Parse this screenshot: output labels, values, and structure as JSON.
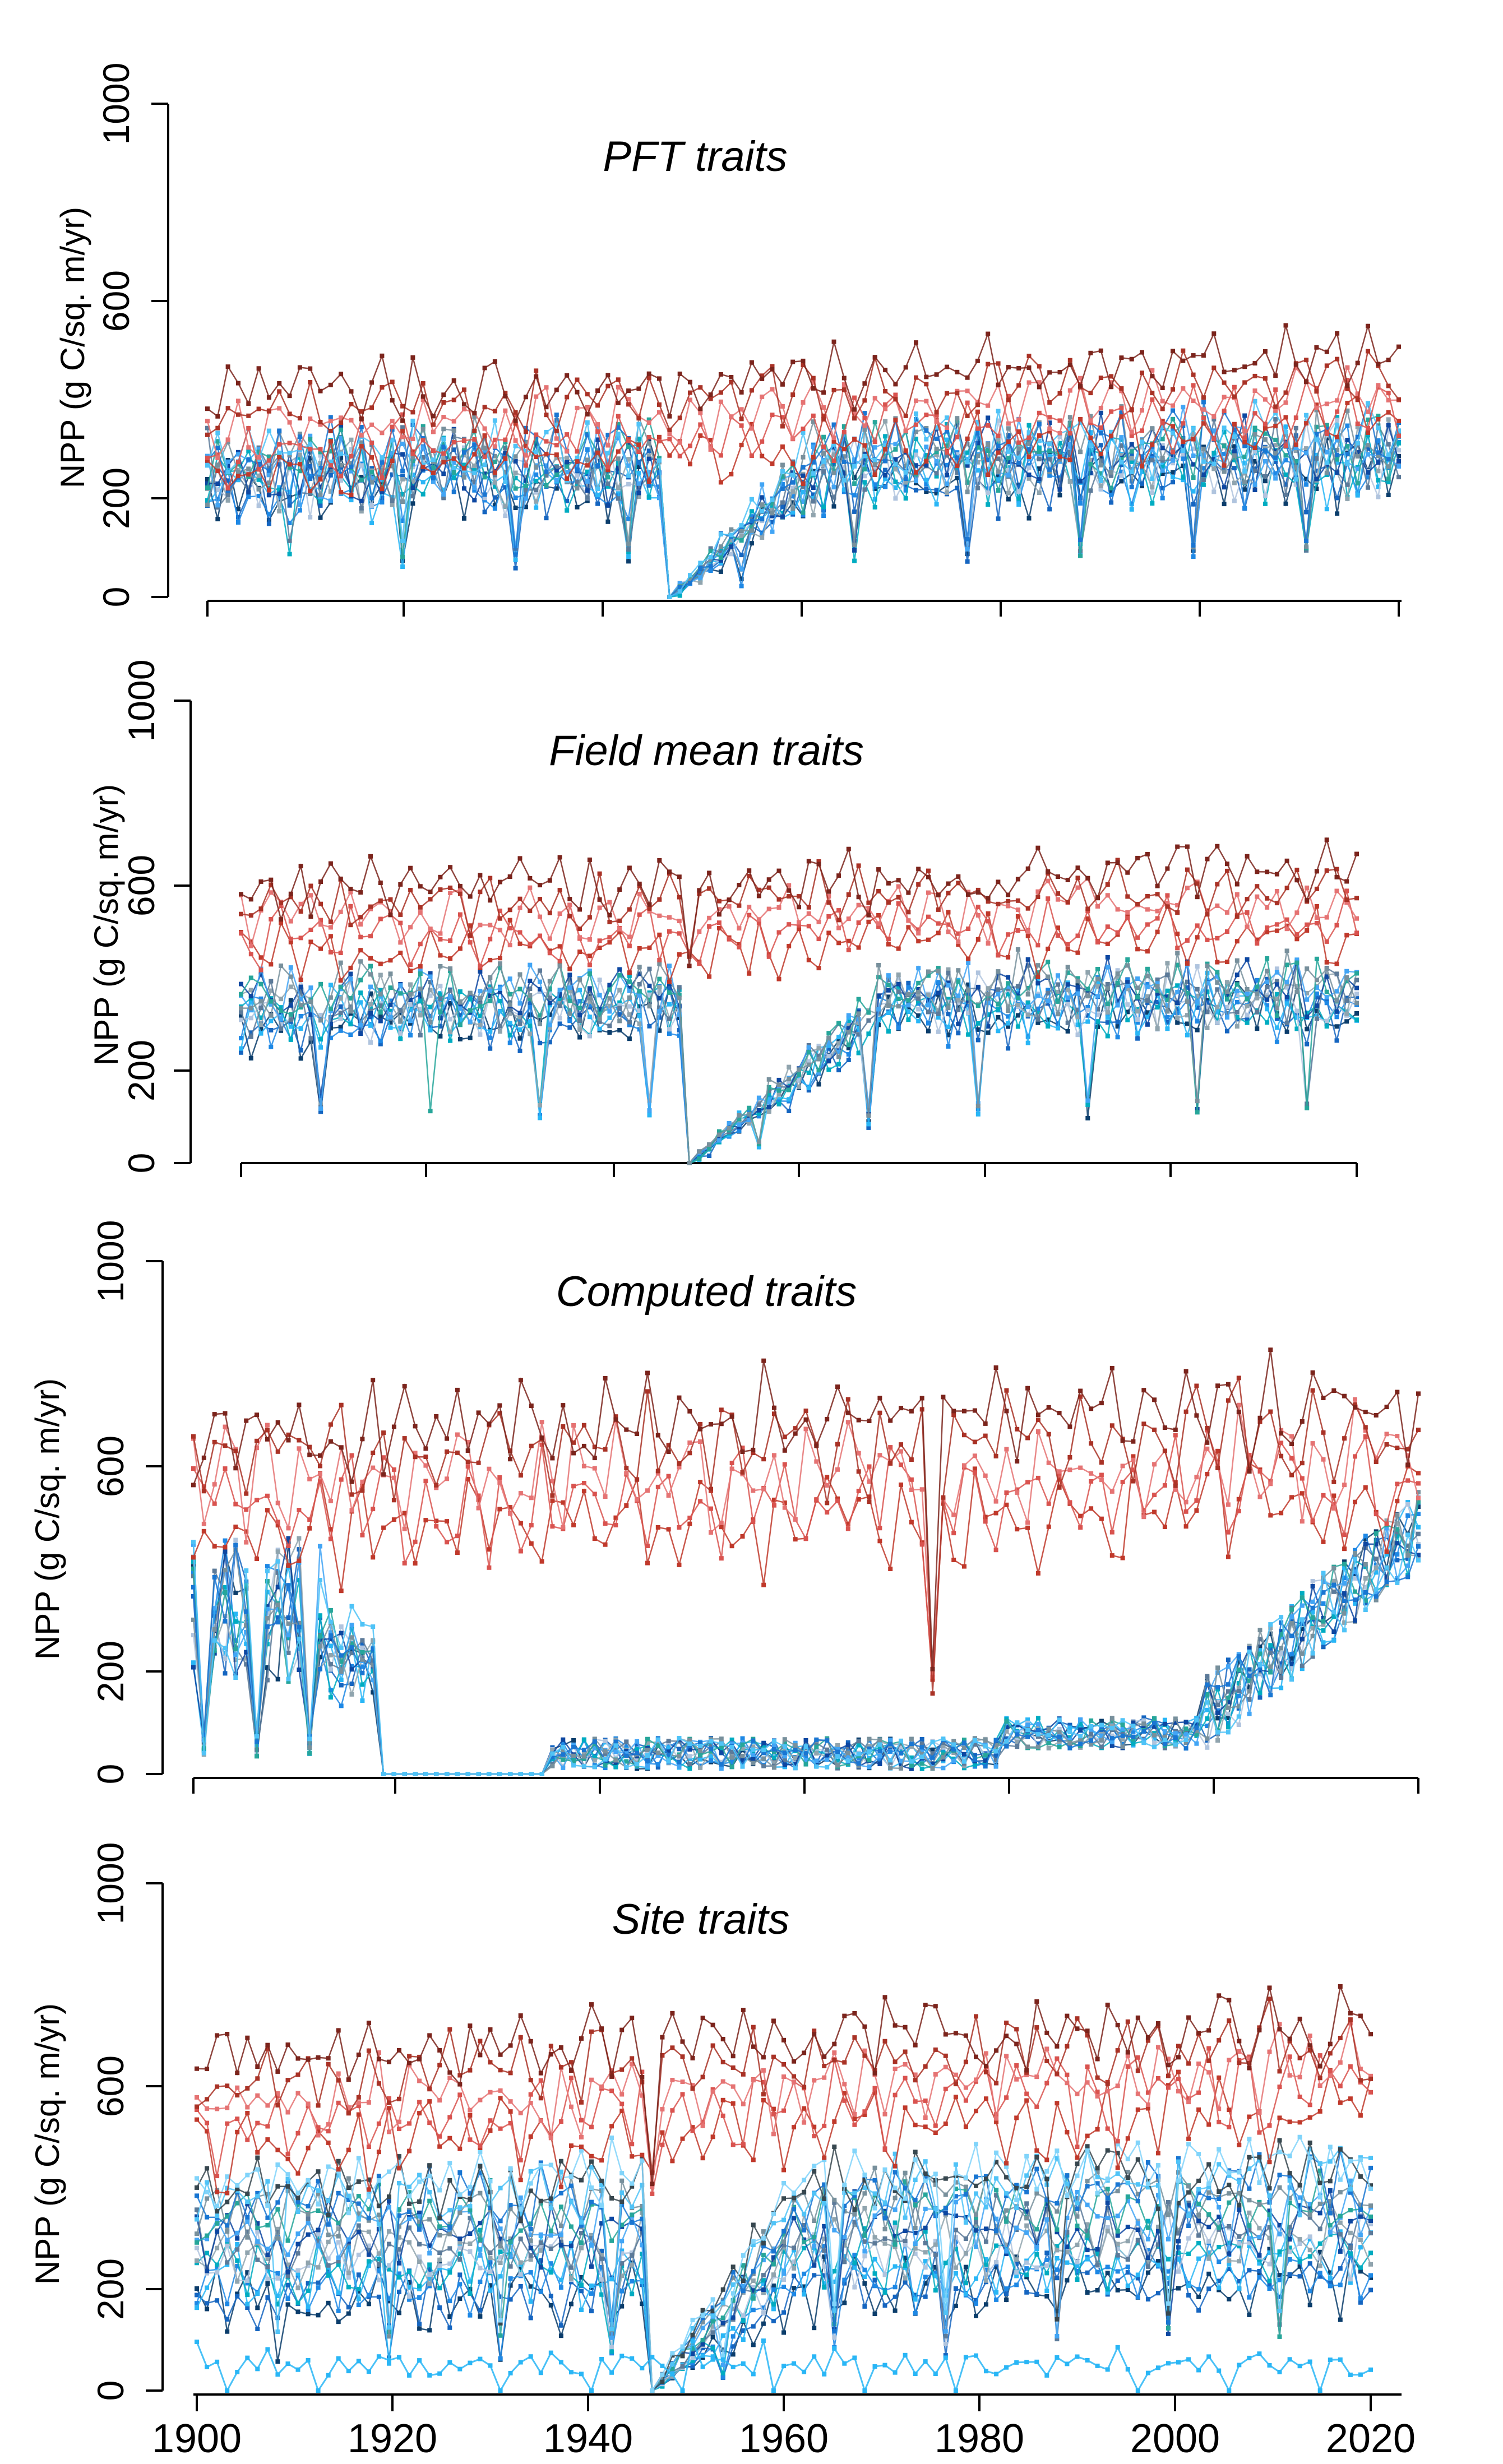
{
  "chart_data": [
    {
      "type": "line",
      "title": "PFT traits",
      "ylabel": "NPP (g C/sq. m/yr)",
      "xlabel": "",
      "xlim": [
        1900,
        2016
      ],
      "ylim": [
        0,
        1000
      ],
      "yticks": [
        "0",
        "200",
        "600",
        "1000"
      ],
      "xticks": [],
      "red_ensemble": {
        "n": 5,
        "base_early": 330,
        "base_late": 420,
        "spread": 75,
        "noise": 55,
        "crash_year": 1945,
        "crash_min": 330
      },
      "blue_ensemble": {
        "n": 14,
        "base_early": 250,
        "base_late": 290,
        "spread": 35,
        "noise": 65,
        "crash_year": 1945,
        "crash_min": 0,
        "recovery_years": 15
      }
    },
    {
      "type": "line",
      "title": "Field mean traits",
      "ylabel": "NPP (g C/sq. m/yr)",
      "xlabel": "",
      "xlim": [
        1900,
        2012
      ],
      "ylim": [
        0,
        1000
      ],
      "yticks": [
        "0",
        "200",
        "600",
        "1000"
      ],
      "xticks": [],
      "red_ensemble": {
        "n": 5,
        "base_early": 520,
        "base_late": 560,
        "spread": 70,
        "noise": 55,
        "crash_year": 1945,
        "crash_min": 400
      },
      "blue_ensemble": {
        "n": 12,
        "base_early": 330,
        "base_late": 360,
        "spread": 35,
        "noise": 55,
        "crash_year": 1945,
        "crash_min": 0,
        "recovery_years": 20
      }
    },
    {
      "type": "line",
      "title": "Computed traits",
      "ylabel": "NPP (g C/sq. m/yr)",
      "xlabel": "",
      "xlim": [
        1900,
        2016
      ],
      "ylim": [
        0,
        1000
      ],
      "yticks": [
        "0",
        "200",
        "600",
        "1000"
      ],
      "xticks": [],
      "red_ensemble": {
        "n": 5,
        "base_early": 560,
        "base_late": 620,
        "spread": 100,
        "noise": 90,
        "crash_year": 1970,
        "crash_min": 150
      },
      "blue_ensemble": {
        "n": 14,
        "base_early": 250,
        "base_late": 150,
        "spread": 40,
        "noise": 60,
        "zero_from": 1918,
        "zero_to": 1934,
        "low_level": 40,
        "rise_from": 1996
      }
    },
    {
      "type": "line",
      "title": "Site traits",
      "ylabel": "NPP (g C/sq. m/yr)",
      "xlabel": "",
      "xlim": [
        1900,
        2016
      ],
      "ylim": [
        0,
        1000
      ],
      "yticks": [
        "0",
        "200",
        "600",
        "1000"
      ],
      "xticks": [
        "1900",
        "1920",
        "1940",
        "1960",
        "1980",
        "2000",
        "2020"
      ],
      "red_ensemble": {
        "n": 5,
        "base_early": 560,
        "base_late": 640,
        "spread": 90,
        "noise": 70,
        "crash_year": 1945,
        "crash_min": 380
      },
      "blue_ensemble": {
        "n": 16,
        "base_early": 290,
        "base_late": 330,
        "spread": 120,
        "noise": 55,
        "crash_year": 1945,
        "crash_min": 0,
        "recovery_years": 15
      },
      "flat_series": {
        "level": 50,
        "noise": 20
      }
    }
  ],
  "colors": {
    "reds": [
      "#c0392b",
      "#d9534f",
      "#e57373",
      "#a93226",
      "#7b241c"
    ],
    "blues": [
      "#0b3d6b",
      "#1565c0",
      "#1e88e5",
      "#29b6f6",
      "#00acc1",
      "#b0c4de",
      "#90a4ae",
      "#5c7a99",
      "#0d47a1",
      "#42a5f5",
      "#26a69a",
      "#78909c",
      "#1976d2",
      "#4fc3f7",
      "#37474f",
      "#81d4fa"
    ],
    "flat": "#29b6f6"
  }
}
